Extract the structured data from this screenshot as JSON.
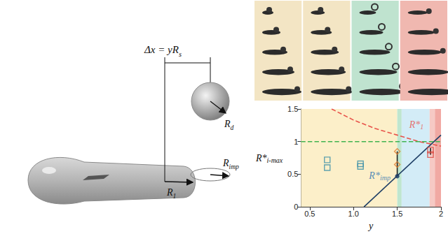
{
  "chart_data": {
    "type": "scatter",
    "x_label": "y",
    "y_label": {
      "text": "R*",
      "subscript": "i-max"
    },
    "xlim": [
      0.4,
      2
    ],
    "xticks": [
      0.5,
      {
        "value": 1,
        "label": "1.0"
      },
      1.5,
      2
    ],
    "ylim": [
      0,
      1.5
    ],
    "yticks": [
      0,
      0.5,
      1,
      1.5
    ],
    "grid": false,
    "regions": [
      {
        "from": 0.4,
        "to": 1.5,
        "color": "#fcefc9"
      },
      {
        "from": 1.5,
        "to": 1.55,
        "color": "#bfe6cf"
      },
      {
        "from": 1.55,
        "to": 1.87,
        "color": "#d3ecf7"
      },
      {
        "from": 1.87,
        "to": 1.93,
        "color": "#f6c9c4"
      },
      {
        "from": 1.93,
        "to": 2,
        "color": "#f1a9a3"
      }
    ],
    "series": [
      {
        "type": "line",
        "line_style": "dashed",
        "color": "#e8524a",
        "x": [
          0.75,
          1,
          1.25,
          1.5,
          1.75,
          2
        ],
        "values": [
          1.5,
          1.33,
          1.2,
          1.1,
          1.0,
          0.93
        ]
      },
      {
        "type": "line",
        "line_style": "solid",
        "color": "#1f3f66",
        "x": [
          1.12,
          2
        ],
        "values": [
          0,
          1.1
        ]
      },
      {
        "type": "line",
        "line_style": "dashed",
        "color": "#3fb34f",
        "x": [
          0.4,
          2
        ],
        "values": [
          1,
          1
        ]
      },
      {
        "type": "line",
        "line_style": "solid",
        "color": "#222222",
        "x": [
          1.5,
          1.5
        ],
        "values": [
          0.47,
          0.85
        ]
      },
      {
        "type": "line",
        "line_style": "solid",
        "color": "#222222",
        "x": [
          1.88,
          1.88
        ],
        "values": [
          0.8,
          0.9
        ]
      },
      {
        "type": "scatter",
        "marker": "square",
        "color": "#3a8fa8",
        "x": [
          0.7,
          0.7,
          1.08,
          1.08
        ],
        "values": [
          0.6,
          0.72,
          0.62,
          0.66
        ]
      },
      {
        "type": "scatter",
        "marker": "diamond",
        "color": "#e07b2c",
        "x": [
          1.5,
          1.5
        ],
        "values": [
          0.65,
          0.85
        ]
      },
      {
        "type": "scatter",
        "marker": "square",
        "color": "#d9433a",
        "x": [
          1.88,
          1.88
        ],
        "values": [
          0.8,
          0.87
        ]
      },
      {
        "type": "scatter",
        "marker": "circle",
        "color": "#1f3f66",
        "x": [
          1.5
        ],
        "values": [
          0.47
        ]
      }
    ],
    "annotations": [
      {
        "text": "R*",
        "subscript": "1",
        "x": 1.72,
        "y": 1.26,
        "color": "#e8524a"
      },
      {
        "text": "R*",
        "subscript": "imp",
        "x": 1.3,
        "y": 0.48,
        "color": "#2a6fb0"
      }
    ]
  },
  "schematic": {
    "offset_label": {
      "text": "Δx = yR",
      "subscript": "s"
    },
    "drop_label": {
      "text": "R",
      "subscript": "d"
    },
    "film_label": {
      "text": "R",
      "subscript": "1"
    },
    "impact_label": {
      "text": "R",
      "subscript": "imp"
    }
  }
}
